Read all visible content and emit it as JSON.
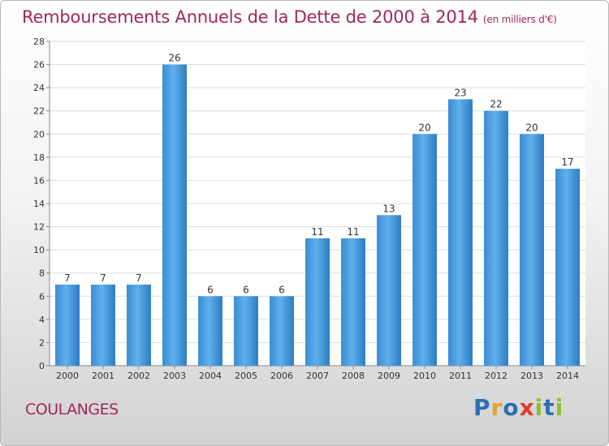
{
  "title": "Remboursements Annuels de la Dette de 2000 à 2014",
  "title_unit": "(en milliers d'€)",
  "place": "COULANGES",
  "logo": "Proxiti",
  "colors": {
    "bar": "#4a9fe0",
    "title": "#a0285a",
    "grid": "#dddddd"
  },
  "chart_data": {
    "type": "bar",
    "title": "Remboursements Annuels de la Dette de 2000 à 2014",
    "subtitle": "(en milliers d'€)",
    "categories": [
      "2000",
      "2001",
      "2002",
      "2003",
      "2004",
      "2005",
      "2006",
      "2007",
      "2008",
      "2009",
      "2010",
      "2011",
      "2012",
      "2013",
      "2014"
    ],
    "values": [
      7,
      7,
      7,
      26,
      6,
      6,
      6,
      11,
      11,
      13,
      20,
      23,
      22,
      20,
      17
    ],
    "ylim": [
      0,
      28
    ],
    "yticks": [
      0,
      2,
      4,
      6,
      8,
      10,
      12,
      14,
      16,
      18,
      20,
      22,
      24,
      26,
      28
    ],
    "grid": true,
    "data_labels": true,
    "xlabel": "",
    "ylabel": ""
  }
}
